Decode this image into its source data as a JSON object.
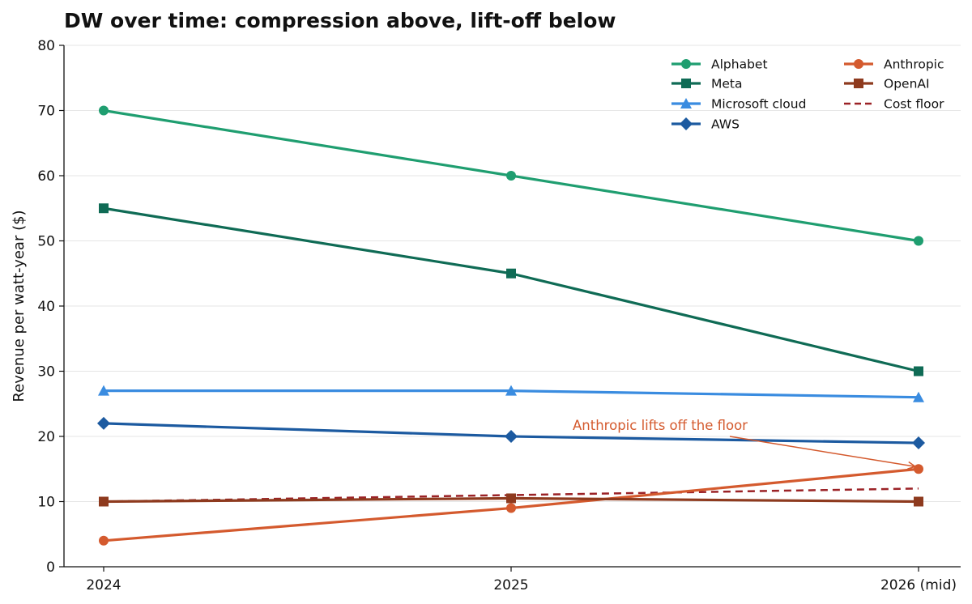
{
  "chart_data": {
    "type": "line",
    "title": "DW over time: compression above, lift-off below",
    "xlabel": "",
    "ylabel": "Revenue per watt-year ($)",
    "categories": [
      "2024",
      "2025",
      "2026 (mid)"
    ],
    "ylim": [
      0,
      80
    ],
    "yticks": [
      0,
      10,
      20,
      30,
      40,
      50,
      60,
      70,
      80
    ],
    "grid": "horizontal",
    "legend_position": "top-right",
    "series": [
      {
        "name": "Alphabet",
        "values": [
          70,
          60,
          50
        ],
        "color": "#1f9e70",
        "marker": "circle",
        "dashed": false
      },
      {
        "name": "Meta",
        "values": [
          55,
          45,
          30
        ],
        "color": "#0f6b55",
        "marker": "square",
        "dashed": false
      },
      {
        "name": "Microsoft cloud",
        "values": [
          27,
          27,
          26
        ],
        "color": "#3a8ce0",
        "marker": "triangle",
        "dashed": false
      },
      {
        "name": "AWS",
        "values": [
          22,
          20,
          19
        ],
        "color": "#1c5aa0",
        "marker": "diamond",
        "dashed": false
      },
      {
        "name": "Anthropic",
        "values": [
          4,
          9,
          15
        ],
        "color": "#d45a2e",
        "marker": "circle",
        "dashed": false
      },
      {
        "name": "OpenAI",
        "values": [
          10,
          10.5,
          10
        ],
        "color": "#8e3a1e",
        "marker": "square",
        "dashed": false
      },
      {
        "name": "Cost floor",
        "values": [
          10,
          11,
          12
        ],
        "color": "#9b2226",
        "marker": "none",
        "dashed": true
      }
    ],
    "annotations": [
      {
        "text": "Anthropic lifts off the floor",
        "color": "#d45a2e",
        "target_category": "2026 (mid)",
        "target_value": 15
      }
    ]
  }
}
